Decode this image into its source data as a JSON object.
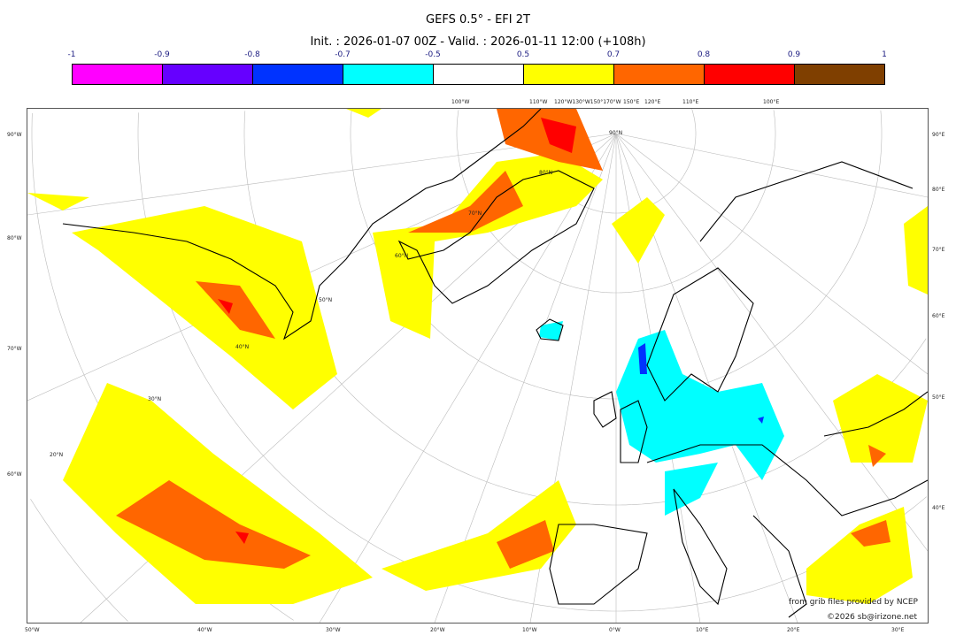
{
  "title": "GEFS 0.5° - EFI 2T",
  "subtitle": "Init. : 2026-01-07 00Z - Valid. : 2026-01-11 12:00 (+108h)",
  "colorbar": {
    "ticks": [
      "-1",
      "-0.9",
      "-0.8",
      "-0.7",
      "-0.5",
      "0.5",
      "0.7",
      "0.8",
      "0.9",
      "1"
    ],
    "colors": [
      "#ff00ff",
      "#6600ff",
      "#0033ff",
      "#00ffff",
      "#ffffff",
      "#ffff00",
      "#ff6600",
      "#ff0000",
      "#7f3f00"
    ]
  },
  "axes": {
    "bottom": [
      "50°W",
      "40°W",
      "30°W",
      "20°W",
      "10°W",
      "0°W",
      "10°E",
      "20°E",
      "30°E"
    ],
    "left": [
      "90°W",
      "80°W",
      "70°W",
      "60°W"
    ],
    "right": [
      "90°E",
      "80°E",
      "70°E",
      "60°E",
      "50°E",
      "40°E"
    ],
    "top": [
      "100°W",
      "110°W",
      "120°W130°W150°170°W",
      "150°E",
      "120°E",
      "110°E",
      "100°E"
    ],
    "lat_labels": [
      "90°N",
      "80°N",
      "70°N",
      "60°N",
      "50°N",
      "40°N",
      "30°N",
      "20°N"
    ]
  },
  "credits": {
    "line1": "from grib files provided by NCEP",
    "line2": "©2026 sb@irizone.net"
  }
}
